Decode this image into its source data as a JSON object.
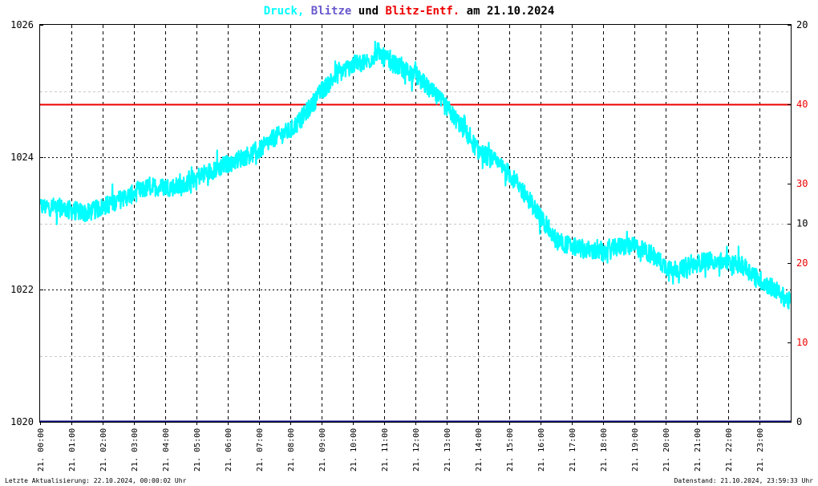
{
  "colors": {
    "pressure": "#00ffff",
    "blitze": "#6a5acd",
    "distance": "#ee0000",
    "base": "#000080",
    "grid": "#000000",
    "grid_light": "#c8c8c8"
  },
  "title": {
    "part1": "Druck,",
    "part2": "Blitze",
    "part3": "und",
    "part4": "Blitz-Entf.",
    "part5": "am 21.10.2024"
  },
  "footer": {
    "left": "Letzte Aktualisierung: 22.10.2024, 00:00:02 Uhr",
    "right": "Datenstand: 21.10.2024, 23:59:33 Uhr"
  },
  "chart_data": {
    "type": "line",
    "grid": true,
    "x_tick_labels": [
      "21. 00:00",
      "21. 01:00",
      "21. 02:00",
      "21. 03:00",
      "21. 04:00",
      "21. 05:00",
      "21. 06:00",
      "21. 07:00",
      "21. 08:00",
      "21. 09:00",
      "21. 10:00",
      "21. 11:00",
      "21. 12:00",
      "21. 13:00",
      "21. 14:00",
      "21. 15:00",
      "21. 16:00",
      "21. 17:00",
      "21. 18:00",
      "21. 19:00",
      "21. 20:00",
      "21. 21:00",
      "21. 22:00",
      "21. 23:00"
    ],
    "y_left": {
      "ylim": [
        1020,
        1026
      ],
      "ticks": [
        "1026",
        "1024",
        "1022",
        "1020"
      ]
    },
    "y_right_ticks": [
      {
        "label": "20",
        "color": "#000000",
        "level": 6.0
      },
      {
        "label": "40",
        "color": "#ee0000",
        "level": 4.8
      },
      {
        "label": "30",
        "color": "#ee0000",
        "level": 3.6
      },
      {
        "label": "10",
        "color": "#000000",
        "level": 3.0
      },
      {
        "label": "20",
        "color": "#ee0000",
        "level": 2.4
      },
      {
        "label": "10",
        "color": "#ee0000",
        "level": 1.2
      },
      {
        "label": "0",
        "color": "#000000",
        "level": 0.0
      }
    ],
    "series": [
      {
        "color": "#00ffff",
        "x": [
          0,
          0.5,
          1,
          1.5,
          2,
          2.5,
          3,
          3.5,
          4,
          4.5,
          5,
          5.5,
          6,
          6.5,
          7,
          7.5,
          8,
          8.3,
          8.7,
          9,
          9.5,
          10,
          10.5,
          10.8,
          11,
          11.5,
          12,
          12.5,
          13,
          13.5,
          14,
          14.5,
          15,
          15.5,
          16,
          16.5,
          17,
          17.5,
          18,
          18.5,
          19,
          19.5,
          20,
          20.5,
          21,
          21.5,
          22,
          22.5,
          23,
          23.5,
          24
        ],
        "y": [
          1023.25,
          1023.25,
          1023.2,
          1023.15,
          1023.25,
          1023.35,
          1023.45,
          1023.55,
          1023.55,
          1023.55,
          1023.7,
          1023.8,
          1023.9,
          1024.0,
          1024.1,
          1024.3,
          1024.4,
          1024.55,
          1024.8,
          1025.0,
          1025.25,
          1025.4,
          1025.45,
          1025.6,
          1025.5,
          1025.35,
          1025.25,
          1025.0,
          1024.75,
          1024.45,
          1024.1,
          1023.95,
          1023.75,
          1023.45,
          1023.1,
          1022.75,
          1022.65,
          1022.6,
          1022.55,
          1022.65,
          1022.65,
          1022.55,
          1022.35,
          1022.3,
          1022.4,
          1022.45,
          1022.4,
          1022.35,
          1022.15,
          1022.0,
          1021.8
        ]
      }
    ],
    "reference_line": {
      "color": "#ee0000",
      "value": 40
    },
    "blitze_count": 0
  }
}
